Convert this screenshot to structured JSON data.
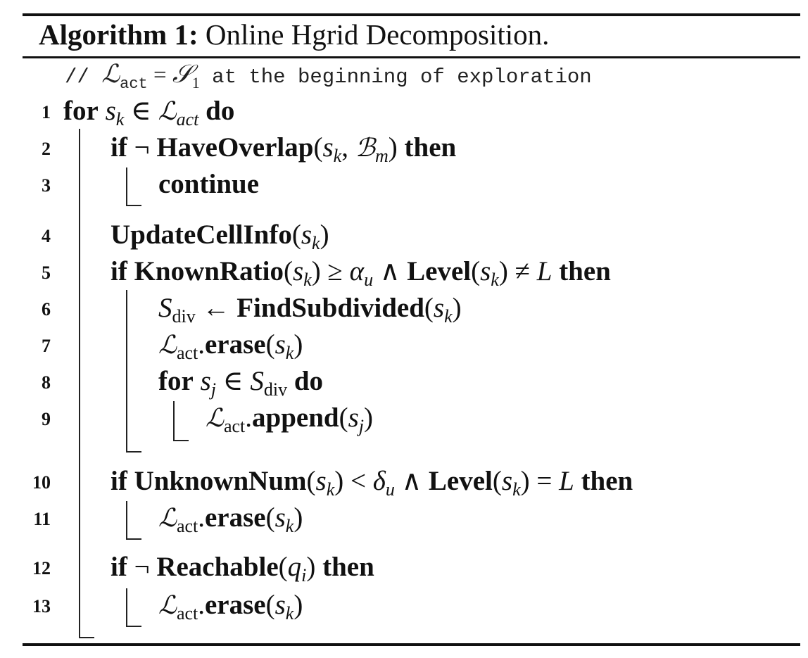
{
  "algorithm": {
    "label": "Algorithm 1:",
    "title": "Online Hgrid Decomposition.",
    "comment": {
      "prefix": "// ",
      "lhs": "ℒ",
      "lhs_sub": "act",
      "op": " = ",
      "rhs": "𝒮",
      "rhs_sub": "1",
      "suffix": " at the beginning of exploration"
    },
    "lines": [
      {
        "num": "1",
        "parts": [
          "for",
          "s",
          "k",
          "∈",
          "ℒ",
          "act",
          "do"
        ]
      },
      {
        "num": "2",
        "parts": [
          "if",
          "¬",
          "HaveOverlap",
          "(",
          "s",
          "k",
          ", ",
          "ℬ",
          "m",
          ")",
          "then"
        ]
      },
      {
        "num": "3",
        "parts": [
          "continue"
        ]
      },
      {
        "num": "4",
        "parts": [
          "UpdateCellInfo",
          "(",
          "s",
          "k",
          ")"
        ]
      },
      {
        "num": "5",
        "parts": [
          "if",
          "KnownRatio",
          "(",
          "s",
          "k",
          ") ≥ ",
          "α",
          "u",
          " ∧ ",
          "Level",
          "(",
          "s",
          "k",
          ") ≠ ",
          "L",
          "then"
        ]
      },
      {
        "num": "6",
        "parts": [
          "S",
          "div",
          " ← ",
          "FindSubdivided",
          "(",
          "s",
          "k",
          ")"
        ]
      },
      {
        "num": "7",
        "parts": [
          "ℒ",
          "act",
          ".",
          "erase",
          "(",
          "s",
          "k",
          ")"
        ]
      },
      {
        "num": "8",
        "parts": [
          "for",
          "s",
          "j",
          " ∈ ",
          "S",
          "div",
          "do"
        ]
      },
      {
        "num": "9",
        "parts": [
          "ℒ",
          "act",
          ".",
          "append",
          "(",
          "s",
          "j",
          ")"
        ]
      },
      {
        "num": "10",
        "parts": [
          "if",
          "UnknownNum",
          "(",
          "s",
          "k",
          ") < ",
          "δ",
          "u",
          " ∧ ",
          "Level",
          "(",
          "s",
          "k",
          ") = ",
          "L",
          "then"
        ]
      },
      {
        "num": "11",
        "parts": [
          "ℒ",
          "act",
          ".",
          "erase",
          "(",
          "s",
          "k",
          ")"
        ]
      },
      {
        "num": "12",
        "parts": [
          "if",
          "¬",
          "Reachable",
          "(",
          "q",
          "i",
          ")",
          "then"
        ]
      },
      {
        "num": "13",
        "parts": [
          "ℒ",
          "act",
          ".",
          "erase",
          "(",
          "s",
          "k",
          ")"
        ]
      }
    ]
  }
}
